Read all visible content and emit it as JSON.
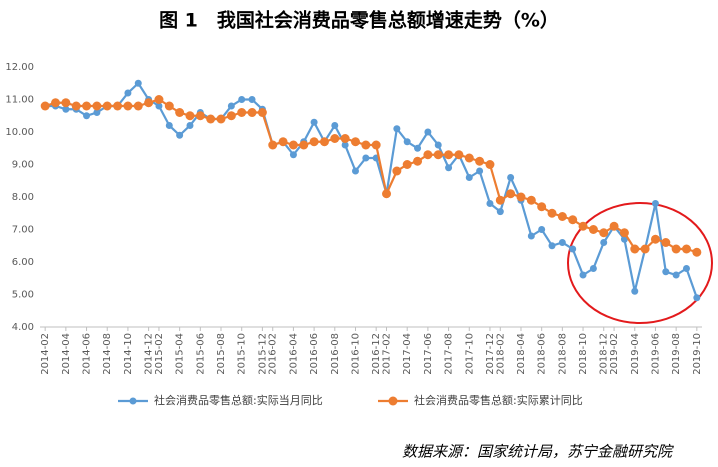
{
  "chart_data": {
    "type": "line",
    "title": "图 1　我国社会消费品零售总额增速走势（%）",
    "source": "数据来源：国家统计局，苏宁金融研究院",
    "categories": [
      "2014-02",
      null,
      "2014-04",
      null,
      "2014-06",
      null,
      "2014-08",
      null,
      "2014-10",
      null,
      "2014-12",
      "2015-02",
      null,
      "2015-04",
      null,
      "2015-06",
      null,
      "2015-08",
      null,
      "2015-10",
      null,
      "2015-12",
      "2016-02",
      null,
      "2016-04",
      null,
      "2016-06",
      null,
      "2016-08",
      null,
      "2016-10",
      null,
      "2016-12",
      "2017-02",
      null,
      "2017-04",
      null,
      "2017-06",
      null,
      "2017-08",
      null,
      "2017-10",
      null,
      "2017-12",
      "2018-02",
      null,
      "2018-04",
      null,
      "2018-06",
      null,
      "2018-08",
      null,
      "2018-10",
      null,
      "2018-12",
      "2019-02",
      null,
      "2019-04",
      null,
      "2019-06",
      null,
      "2019-08",
      null,
      "2019-10"
    ],
    "series": [
      {
        "name": "社会消费品零售总额:实际当月同比",
        "color": "#5b9bd5",
        "marker_size": 3.5,
        "values": [
          10.8,
          10.8,
          10.7,
          10.7,
          10.5,
          10.6,
          10.8,
          10.8,
          11.2,
          11.5,
          11.0,
          10.8,
          10.2,
          9.9,
          10.2,
          10.6,
          10.4,
          10.4,
          10.8,
          11.0,
          11.0,
          10.7,
          9.6,
          9.7,
          9.3,
          9.7,
          10.3,
          9.7,
          10.2,
          9.6,
          8.8,
          9.2,
          9.2,
          8.1,
          10.1,
          9.7,
          9.5,
          10.0,
          9.6,
          8.9,
          9.3,
          8.6,
          8.8,
          7.8,
          7.55,
          8.6,
          7.9,
          6.8,
          7.0,
          6.5,
          6.6,
          6.4,
          5.6,
          5.8,
          6.6,
          7.1,
          6.7,
          5.1,
          6.4,
          7.8,
          5.7,
          5.6,
          5.8,
          4.9
        ]
      },
      {
        "name": "社会消费品零售总额:实际累计同比",
        "color": "#ed7d31",
        "marker_size": 4.5,
        "values": [
          10.8,
          10.9,
          10.9,
          10.8,
          10.8,
          10.8,
          10.8,
          10.8,
          10.8,
          10.8,
          10.9,
          11.0,
          10.8,
          10.6,
          10.5,
          10.5,
          10.4,
          10.4,
          10.5,
          10.6,
          10.6,
          10.6,
          9.6,
          9.7,
          9.6,
          9.6,
          9.7,
          9.7,
          9.8,
          9.8,
          9.7,
          9.6,
          9.6,
          8.1,
          8.8,
          9.0,
          9.1,
          9.3,
          9.3,
          9.3,
          9.3,
          9.2,
          9.1,
          9.0,
          7.9,
          8.1,
          8.0,
          7.9,
          7.7,
          7.5,
          7.4,
          7.3,
          7.1,
          7.0,
          6.9,
          7.1,
          6.9,
          6.4,
          6.4,
          6.7,
          6.6,
          6.4,
          6.4,
          6.3
        ]
      }
    ],
    "ylim": [
      4,
      12
    ],
    "yticks": [
      {
        "value": 4,
        "label": "4.00"
      },
      {
        "value": 5,
        "label": "5.00"
      },
      {
        "value": 6,
        "label": "6.00"
      },
      {
        "value": 7,
        "label": "7.00"
      },
      {
        "value": 8,
        "label": "8.00"
      },
      {
        "value": 9,
        "label": "9.00"
      },
      {
        "value": 10,
        "label": "10.00"
      },
      {
        "value": 11,
        "label": "11.00"
      },
      {
        "value": 12,
        "label": "12.00"
      }
    ],
    "grid": false,
    "legend": "bottom"
  }
}
